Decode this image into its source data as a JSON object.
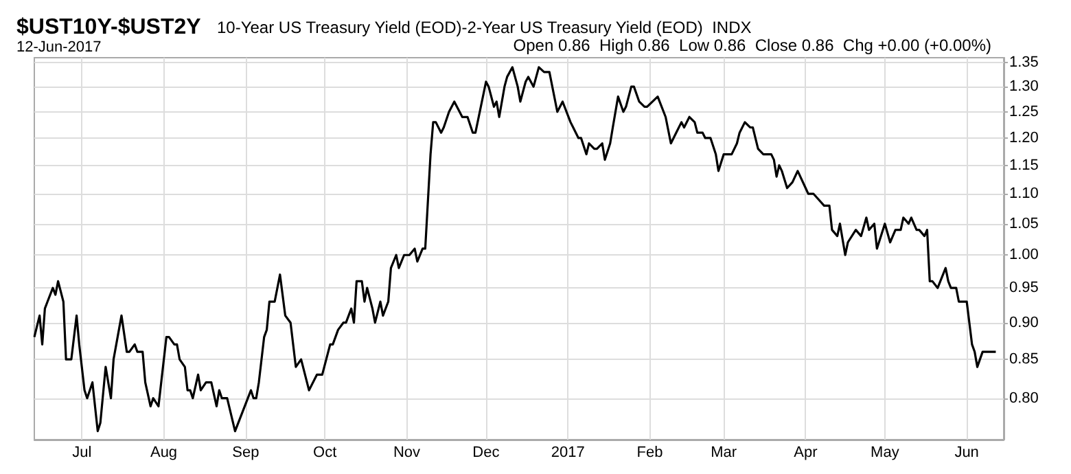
{
  "chart_data": {
    "type": "line",
    "title": "$UST10Y-$UST2Y",
    "subtitle": "10-Year US Treasury Yield (EOD)-2-Year US Treasury Yield (EOD)  INDX",
    "annotations": [
      "12-Jun-2017",
      "Open 0.86  High 0.86  Low 0.86  Close 0.86  Chg +0.00 (+0.00%)"
    ],
    "series": [
      {
        "color": "#000000",
        "x": [
          "2016-06-13",
          "2016-06-15",
          "2016-06-16",
          "2016-06-17",
          "2016-06-18",
          "2016-06-20",
          "2016-06-21",
          "2016-06-22",
          "2016-06-24",
          "2016-06-25",
          "2016-06-27",
          "2016-06-29",
          "2016-06-30",
          "2016-07-02",
          "2016-07-03",
          "2016-07-05",
          "2016-07-07",
          "2016-07-08",
          "2016-07-10",
          "2016-07-12",
          "2016-07-13",
          "2016-07-16",
          "2016-07-18",
          "2016-07-19",
          "2016-07-21",
          "2016-07-22",
          "2016-07-24",
          "2016-07-25",
          "2016-07-27",
          "2016-07-28",
          "2016-07-30",
          "2016-08-02",
          "2016-08-03",
          "2016-08-05",
          "2016-08-06",
          "2016-08-07",
          "2016-08-09",
          "2016-08-10",
          "2016-08-11",
          "2016-08-12",
          "2016-08-14",
          "2016-08-15",
          "2016-08-17",
          "2016-08-19",
          "2016-08-21",
          "2016-08-22",
          "2016-08-23",
          "2016-08-25",
          "2016-08-28",
          "2016-09-03",
          "2016-09-04",
          "2016-09-05",
          "2016-09-06",
          "2016-09-08",
          "2016-09-09",
          "2016-09-10",
          "2016-09-12",
          "2016-09-14",
          "2016-09-16",
          "2016-09-18",
          "2016-09-20",
          "2016-09-22",
          "2016-09-25",
          "2016-09-28",
          "2016-09-30",
          "2016-10-03",
          "2016-10-04",
          "2016-10-06",
          "2016-10-08",
          "2016-10-09",
          "2016-10-11",
          "2016-10-12",
          "2016-10-13",
          "2016-10-15",
          "2016-10-16",
          "2016-10-17",
          "2016-10-19",
          "2016-10-20",
          "2016-10-22",
          "2016-10-23",
          "2016-10-25",
          "2016-10-26",
          "2016-10-28",
          "2016-10-29",
          "2016-10-31",
          "2016-11-02",
          "2016-11-04",
          "2016-11-05",
          "2016-11-07",
          "2016-11-08",
          "2016-11-10",
          "2016-11-11",
          "2016-11-12",
          "2016-11-14",
          "2016-11-15",
          "2016-11-17",
          "2016-11-19",
          "2016-11-21",
          "2016-11-22",
          "2016-11-24",
          "2016-11-26",
          "2016-11-27",
          "2016-12-01",
          "2016-12-02",
          "2016-12-04",
          "2016-12-05",
          "2016-12-06",
          "2016-12-08",
          "2016-12-09",
          "2016-12-11",
          "2016-12-13",
          "2016-12-14",
          "2016-12-16",
          "2016-12-17",
          "2016-12-19",
          "2016-12-21",
          "2016-12-23",
          "2016-12-25",
          "2016-12-28",
          "2016-12-30",
          "2017-01-02",
          "2017-01-03",
          "2017-01-05",
          "2017-01-06",
          "2017-01-08",
          "2017-01-09",
          "2017-01-11",
          "2017-01-12",
          "2017-01-14",
          "2017-01-15",
          "2017-01-17",
          "2017-01-18",
          "2017-01-20",
          "2017-01-22",
          "2017-01-23",
          "2017-01-25",
          "2017-01-26",
          "2017-01-28",
          "2017-01-30",
          "2017-01-31",
          "2017-02-04",
          "2017-02-07",
          "2017-02-09",
          "2017-02-11",
          "2017-02-13",
          "2017-02-14",
          "2017-02-16",
          "2017-02-18",
          "2017-02-19",
          "2017-02-21",
          "2017-02-22",
          "2017-02-24",
          "2017-02-26",
          "2017-02-27",
          "2017-03-01",
          "2017-03-03",
          "2017-03-04",
          "2017-03-06",
          "2017-03-07",
          "2017-03-09",
          "2017-03-11",
          "2017-03-12",
          "2017-03-14",
          "2017-03-16",
          "2017-03-17",
          "2017-03-19",
          "2017-03-20",
          "2017-03-21",
          "2017-03-22",
          "2017-03-23",
          "2017-03-25",
          "2017-03-27",
          "2017-03-29",
          "2017-03-30",
          "2017-04-01",
          "2017-04-02",
          "2017-04-04",
          "2017-04-06",
          "2017-04-08",
          "2017-04-10",
          "2017-04-11",
          "2017-04-13",
          "2017-04-14",
          "2017-04-16",
          "2017-04-17",
          "2017-04-20",
          "2017-04-22",
          "2017-04-24",
          "2017-04-25",
          "2017-04-27",
          "2017-04-28",
          "2017-05-01",
          "2017-05-03",
          "2017-05-05",
          "2017-05-07",
          "2017-05-08",
          "2017-05-10",
          "2017-05-11",
          "2017-05-13",
          "2017-05-14",
          "2017-05-16",
          "2017-05-17",
          "2017-05-18",
          "2017-05-19",
          "2017-05-21",
          "2017-05-22",
          "2017-05-24",
          "2017-05-25",
          "2017-05-26",
          "2017-05-28",
          "2017-05-29",
          "2017-06-01",
          "2017-06-03",
          "2017-06-04",
          "2017-06-05",
          "2017-06-07",
          "2017-06-12"
        ],
        "values": [
          0.88,
          0.91,
          0.87,
          0.92,
          0.93,
          0.95,
          0.94,
          0.96,
          0.93,
          0.85,
          0.85,
          0.91,
          0.87,
          0.81,
          0.8,
          0.82,
          0.76,
          0.77,
          0.84,
          0.8,
          0.85,
          0.91,
          0.86,
          0.86,
          0.87,
          0.86,
          0.86,
          0.82,
          0.79,
          0.8,
          0.79,
          0.88,
          0.88,
          0.87,
          0.87,
          0.85,
          0.84,
          0.81,
          0.81,
          0.8,
          0.83,
          0.81,
          0.82,
          0.82,
          0.79,
          0.81,
          0.8,
          0.8,
          0.76,
          0.81,
          0.8,
          0.8,
          0.82,
          0.88,
          0.89,
          0.93,
          0.93,
          0.97,
          0.91,
          0.9,
          0.84,
          0.85,
          0.81,
          0.83,
          0.83,
          0.87,
          0.87,
          0.89,
          0.9,
          0.9,
          0.92,
          0.9,
          0.96,
          0.96,
          0.93,
          0.95,
          0.92,
          0.9,
          0.93,
          0.91,
          0.93,
          0.98,
          1.0,
          0.98,
          1.0,
          1.0,
          1.01,
          0.99,
          1.01,
          1.01,
          1.17,
          1.23,
          1.23,
          1.21,
          1.22,
          1.25,
          1.27,
          1.25,
          1.24,
          1.24,
          1.21,
          1.21,
          1.31,
          1.3,
          1.26,
          1.27,
          1.24,
          1.3,
          1.32,
          1.34,
          1.3,
          1.27,
          1.31,
          1.32,
          1.3,
          1.34,
          1.33,
          1.33,
          1.25,
          1.27,
          1.23,
          1.22,
          1.2,
          1.2,
          1.17,
          1.19,
          1.18,
          1.18,
          1.19,
          1.16,
          1.19,
          1.22,
          1.28,
          1.25,
          1.26,
          1.3,
          1.3,
          1.27,
          1.26,
          1.26,
          1.28,
          1.24,
          1.19,
          1.21,
          1.23,
          1.22,
          1.24,
          1.23,
          1.21,
          1.21,
          1.2,
          1.2,
          1.17,
          1.14,
          1.17,
          1.17,
          1.17,
          1.19,
          1.21,
          1.23,
          1.22,
          1.22,
          1.18,
          1.17,
          1.17,
          1.17,
          1.16,
          1.13,
          1.15,
          1.14,
          1.11,
          1.12,
          1.14,
          1.13,
          1.11,
          1.1,
          1.1,
          1.09,
          1.08,
          1.08,
          1.04,
          1.03,
          1.05,
          1.0,
          1.02,
          1.04,
          1.03,
          1.06,
          1.04,
          1.05,
          1.01,
          1.05,
          1.02,
          1.04,
          1.04,
          1.06,
          1.05,
          1.06,
          1.04,
          1.04,
          1.03,
          1.04,
          0.96,
          0.96,
          0.95,
          0.96,
          0.98,
          0.96,
          0.95,
          0.95,
          0.93,
          0.93,
          0.87,
          0.86,
          0.84,
          0.86,
          0.86
        ]
      }
    ],
    "xlim": [
      "2016-06-13",
      "2017-06-15"
    ],
    "xticks": [
      {
        "value": "2016-07-01",
        "label": "Jul"
      },
      {
        "value": "2016-08-01",
        "label": "Aug"
      },
      {
        "value": "2016-09-01",
        "label": "Sep"
      },
      {
        "value": "2016-10-01",
        "label": "Oct"
      },
      {
        "value": "2016-11-01",
        "label": "Nov"
      },
      {
        "value": "2016-12-01",
        "label": "Dec"
      },
      {
        "value": "2017-01-01",
        "label": "2017"
      },
      {
        "value": "2017-02-01",
        "label": "Feb"
      },
      {
        "value": "2017-03-01",
        "label": "Mar"
      },
      {
        "value": "2017-04-01",
        "label": "Apr"
      },
      {
        "value": "2017-05-01",
        "label": "May"
      },
      {
        "value": "2017-06-01",
        "label": "Jun"
      }
    ],
    "ylim": [
      0.75,
      1.36
    ],
    "yticks": [
      {
        "value": 0.8,
        "label": "0.80"
      },
      {
        "value": 0.85,
        "label": "0.85"
      },
      {
        "value": 0.9,
        "label": "0.90"
      },
      {
        "value": 0.95,
        "label": "0.95"
      },
      {
        "value": 1.0,
        "label": "1.00"
      },
      {
        "value": 1.05,
        "label": "1.05"
      },
      {
        "value": 1.1,
        "label": "1.10"
      },
      {
        "value": 1.15,
        "label": "1.15"
      },
      {
        "value": 1.2,
        "label": "1.20"
      },
      {
        "value": 1.25,
        "label": "1.25"
      },
      {
        "value": 1.3,
        "label": "1.30"
      },
      {
        "value": 1.35,
        "label": "1.35"
      }
    ],
    "log": true,
    "grid": true,
    "marker": "none",
    "line_style": "solid"
  }
}
